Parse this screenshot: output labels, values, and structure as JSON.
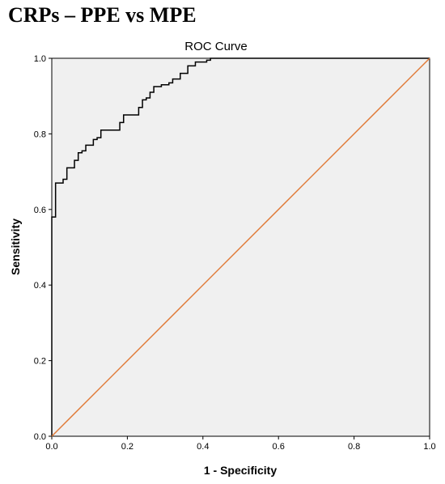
{
  "page": {
    "title": "CRPs – PPE vs MPE"
  },
  "chart_data": {
    "type": "line",
    "title": "ROC Curve",
    "xlabel": "1 - Specificity",
    "ylabel": "Sensitivity",
    "xlim": [
      0,
      1
    ],
    "ylim": [
      0,
      1
    ],
    "xticks": [
      "0.0",
      "0.2",
      "0.4",
      "0.6",
      "0.8",
      "1.0"
    ],
    "yticks": [
      "0.0",
      "0.2",
      "0.4",
      "0.6",
      "0.8",
      "1.0"
    ],
    "grid": false,
    "series": [
      {
        "kind": "step",
        "color": "#000000",
        "x": [
          0.0,
          0.0,
          0.01,
          0.01,
          0.03,
          0.04,
          0.04,
          0.06,
          0.06,
          0.07,
          0.08,
          0.09,
          0.11,
          0.12,
          0.13,
          0.16,
          0.18,
          0.19,
          0.22,
          0.23,
          0.24,
          0.25,
          0.26,
          0.26,
          0.27,
          0.29,
          0.31,
          0.32,
          0.33,
          0.34,
          0.36,
          0.38,
          0.38,
          0.41,
          0.42,
          1.0
        ],
        "y": [
          0.0,
          0.58,
          0.58,
          0.67,
          0.68,
          0.7,
          0.71,
          0.72,
          0.73,
          0.75,
          0.755,
          0.77,
          0.785,
          0.79,
          0.81,
          0.81,
          0.83,
          0.85,
          0.85,
          0.87,
          0.89,
          0.895,
          0.9,
          0.91,
          0.925,
          0.93,
          0.935,
          0.945,
          0.945,
          0.96,
          0.98,
          0.98,
          0.99,
          0.995,
          1.0,
          1.0
        ]
      },
      {
        "kind": "reference",
        "color": "#e07b39",
        "x": [
          0,
          1
        ],
        "y": [
          0,
          1
        ]
      }
    ]
  }
}
